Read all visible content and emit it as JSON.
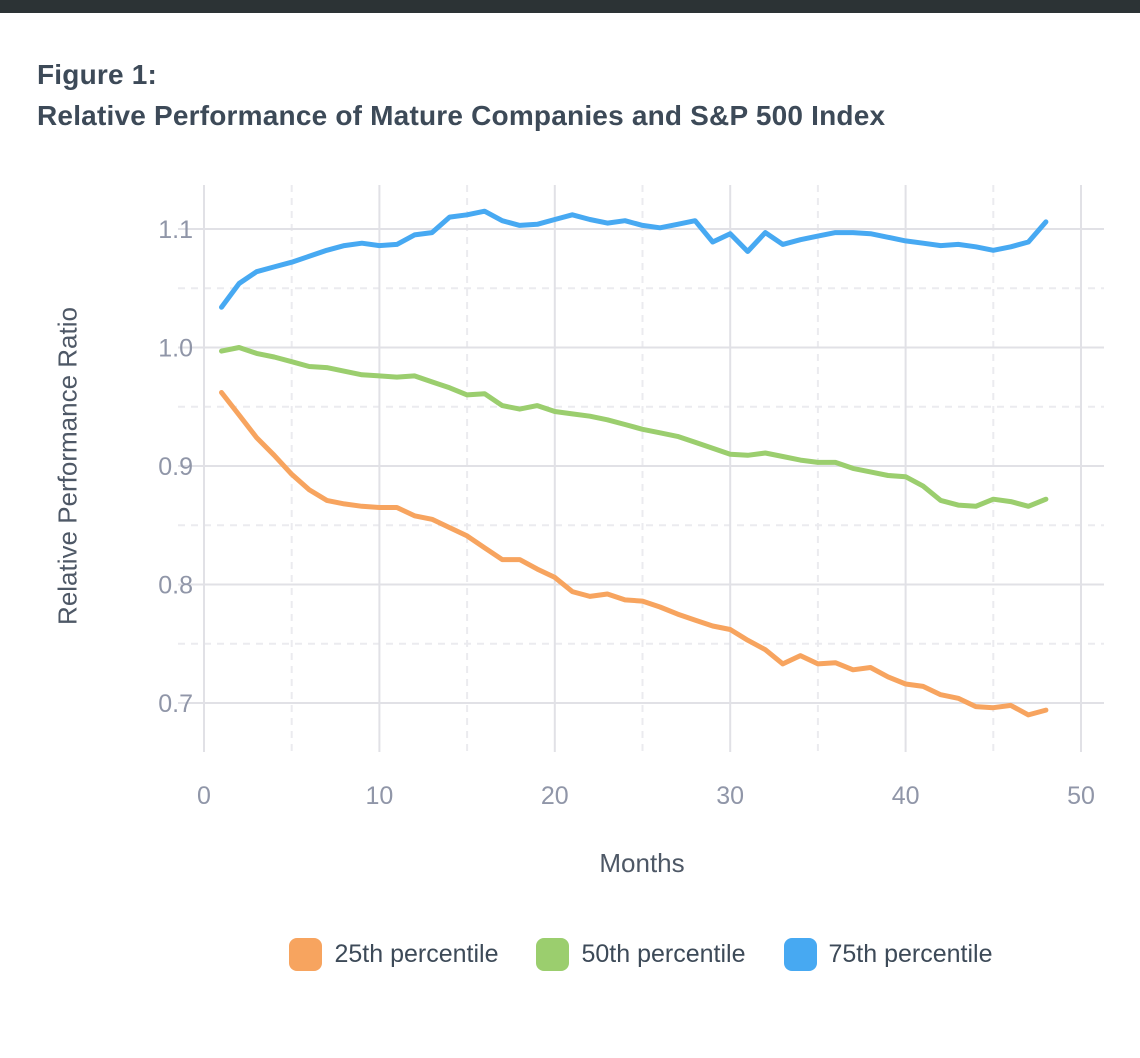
{
  "figure": {
    "label": "Figure 1:",
    "title": "Relative Performance of Mature Companies and S&P 500 Index"
  },
  "chart_data": {
    "type": "line",
    "title": "Figure 1: Relative Performance of Mature Companies and S&P 500 Index",
    "xlabel": "Months",
    "ylabel": "Relative Performance Ratio",
    "xlim": [
      0,
      50
    ],
    "ylim": [
      0.7,
      1.1
    ],
    "grid": "major solid, minor dashed",
    "legend_position": "bottom",
    "x_ticks": [
      0,
      10,
      20,
      30,
      40,
      50
    ],
    "x_minor_ticks": [
      5,
      15,
      25,
      35,
      45
    ],
    "y_ticks": [
      1.1,
      1.0,
      0.9,
      0.8,
      0.7
    ],
    "y_tick_labels": [
      "1.1",
      "1.0",
      "0.9",
      "0.8",
      "0.7"
    ],
    "y_minor_ticks": [
      1.05,
      0.95,
      0.85,
      0.75
    ],
    "x": [
      1,
      2,
      3,
      4,
      5,
      6,
      7,
      8,
      9,
      10,
      11,
      12,
      13,
      14,
      15,
      16,
      17,
      18,
      19,
      20,
      21,
      22,
      23,
      24,
      25,
      26,
      27,
      28,
      29,
      30,
      31,
      32,
      33,
      34,
      35,
      36,
      37,
      38,
      39,
      40,
      41,
      42,
      43,
      44,
      45,
      46,
      47,
      48
    ],
    "series": [
      {
        "name": "25th percentile",
        "color": "#f7a45f",
        "values": [
          0.962,
          0.943,
          0.924,
          0.909,
          0.893,
          0.88,
          0.871,
          0.868,
          0.866,
          0.865,
          0.865,
          0.858,
          0.855,
          0.848,
          0.841,
          0.831,
          0.821,
          0.821,
          0.813,
          0.806,
          0.794,
          0.79,
          0.792,
          0.787,
          0.786,
          0.781,
          0.775,
          0.77,
          0.765,
          0.762,
          0.753,
          0.745,
          0.733,
          0.74,
          0.733,
          0.734,
          0.728,
          0.73,
          0.722,
          0.716,
          0.714,
          0.707,
          0.704,
          0.697,
          0.696,
          0.698,
          0.69,
          0.694
        ]
      },
      {
        "name": "50th percentile",
        "color": "#9bce6e",
        "values": [
          0.997,
          1.0,
          0.995,
          0.992,
          0.988,
          0.984,
          0.983,
          0.98,
          0.977,
          0.976,
          0.975,
          0.976,
          0.971,
          0.966,
          0.96,
          0.961,
          0.951,
          0.948,
          0.951,
          0.946,
          0.944,
          0.942,
          0.939,
          0.935,
          0.931,
          0.928,
          0.925,
          0.92,
          0.915,
          0.91,
          0.909,
          0.911,
          0.908,
          0.905,
          0.903,
          0.903,
          0.898,
          0.895,
          0.892,
          0.891,
          0.883,
          0.871,
          0.867,
          0.866,
          0.872,
          0.87,
          0.866,
          0.872
        ]
      },
      {
        "name": "75th percentile",
        "color": "#47a9f2",
        "values": [
          1.034,
          1.054,
          1.064,
          1.068,
          1.072,
          1.077,
          1.082,
          1.086,
          1.088,
          1.086,
          1.087,
          1.095,
          1.097,
          1.11,
          1.112,
          1.115,
          1.107,
          1.103,
          1.104,
          1.108,
          1.112,
          1.108,
          1.105,
          1.107,
          1.103,
          1.101,
          1.104,
          1.107,
          1.089,
          1.096,
          1.081,
          1.097,
          1.087,
          1.091,
          1.094,
          1.097,
          1.097,
          1.096,
          1.093,
          1.09,
          1.088,
          1.086,
          1.087,
          1.085,
          1.082,
          1.085,
          1.089,
          1.106
        ]
      }
    ],
    "colors": {
      "topbar": "#2c3335",
      "title_text": "#3d4a58",
      "axis_title_text": "#4e5866",
      "tick_text": "#9096a8",
      "grid_major": "#e1e1e6",
      "grid_minor": "#ebebef",
      "background": "#ffffff"
    }
  }
}
